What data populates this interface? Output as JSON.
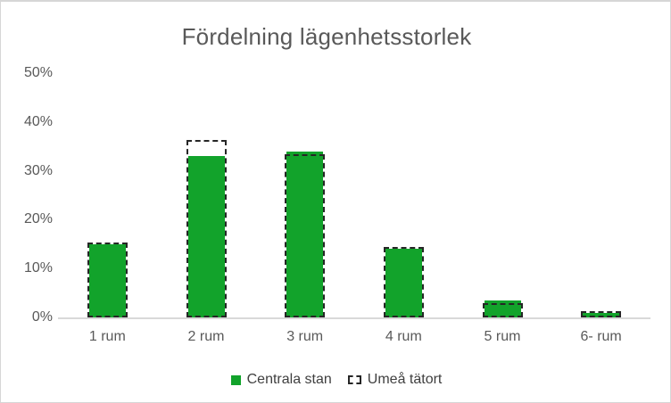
{
  "chart_data": {
    "type": "bar",
    "title": "Fördelning lägenhetsstorlek",
    "categories": [
      "1 rum",
      "2 rum",
      "3 rum",
      "4 rum",
      "5 rum",
      "6- rum"
    ],
    "series": [
      {
        "name": "Centrala stan",
        "style": "solid",
        "values": [
          15,
          33,
          34,
          14,
          3.5,
          1
        ]
      },
      {
        "name": "Umeå tätort",
        "style": "dashed-outline",
        "values": [
          15,
          36,
          33,
          14,
          2.5,
          1
        ]
      }
    ],
    "xlabel": "",
    "ylabel": "",
    "ylim": [
      0,
      50
    ],
    "yticks": [
      {
        "value": 0,
        "label": "0%"
      },
      {
        "value": 10,
        "label": "10%"
      },
      {
        "value": 20,
        "label": "20%"
      },
      {
        "value": 30,
        "label": "30%"
      },
      {
        "value": 40,
        "label": "40%"
      },
      {
        "value": 50,
        "label": "50%"
      }
    ],
    "grid": false,
    "legend_position": "bottom"
  },
  "colors": {
    "series_solid": "#12A32B",
    "series_outline": "#262626",
    "axis_line": "#D9D9D9",
    "tick_text": "#595959",
    "category_text": "#595959",
    "title_text": "#595959",
    "legend_text": "#3F3F3F",
    "frame_border": "#D6D6D6",
    "background": "#FFFFFF"
  }
}
